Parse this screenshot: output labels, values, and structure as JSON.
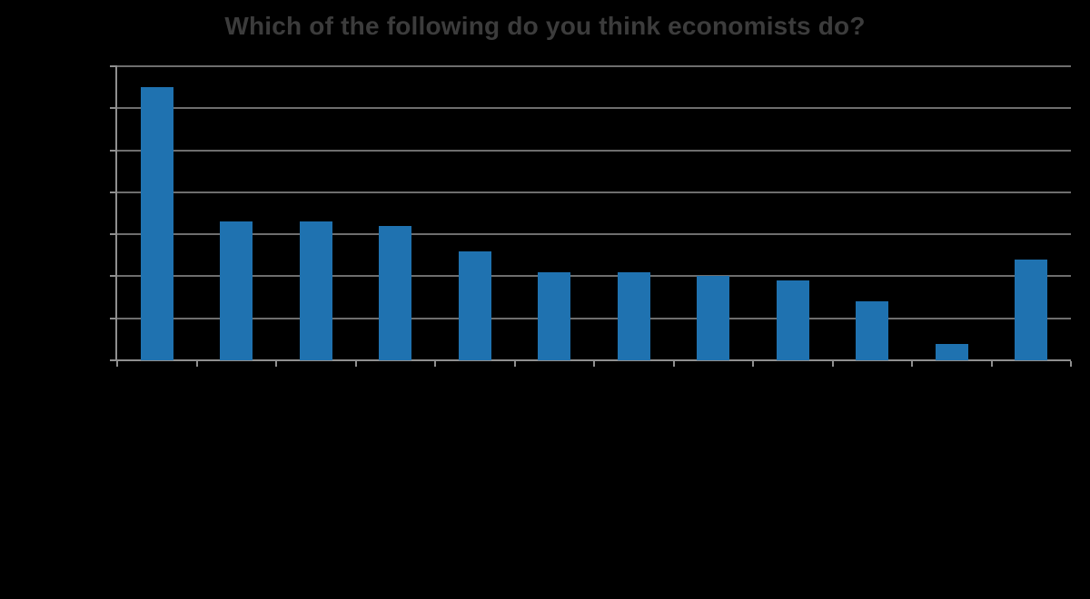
{
  "chart_data": {
    "type": "bar",
    "title": "Which of the following do you think economists do?",
    "categories": [
      "",
      "",
      "",
      "",
      "",
      "",
      "",
      "",
      "",
      "",
      "",
      ""
    ],
    "values": [
      65,
      33,
      33,
      32,
      26,
      21,
      21,
      20,
      19,
      14,
      4,
      24
    ],
    "xlabel": "",
    "ylabel": "",
    "ylim": [
      0,
      70
    ],
    "ytick_interval": 10,
    "grid": true,
    "legend_position": "none",
    "axis_tick_labels_visible": false,
    "bar_color": "#1f72b0",
    "gridline_color": "#6e6e6e",
    "axis_color": "#8f8f8f",
    "title_color": "#3c3c3c",
    "background_color": "#000000"
  }
}
